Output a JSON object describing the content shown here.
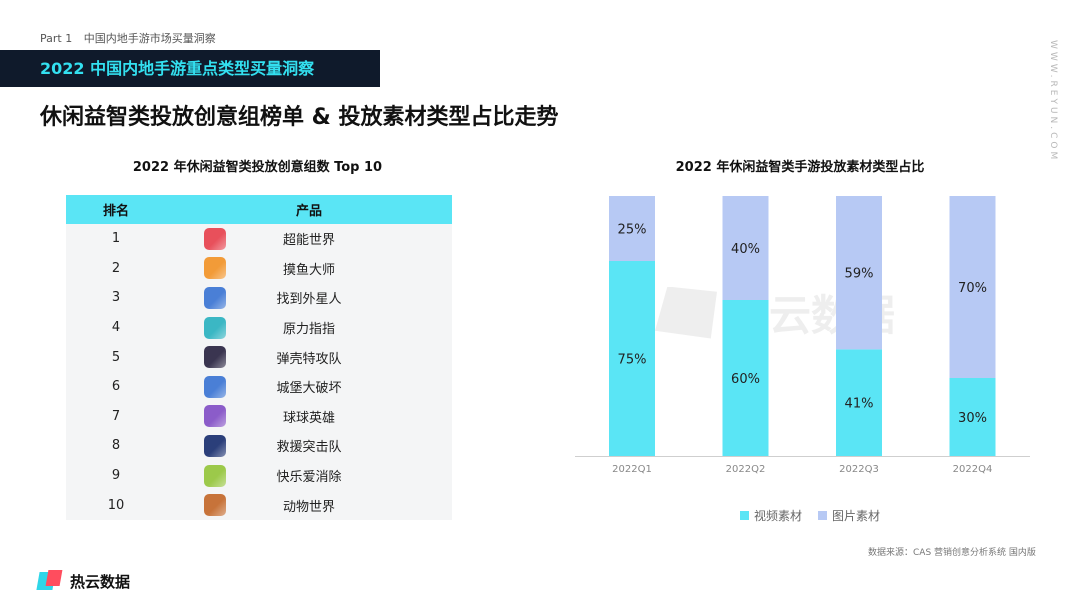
{
  "header": {
    "part_num": "Part 1",
    "part_text": "中国内地手游市场买量洞察",
    "banner": "2022 中国内地手游重点类型买量洞察",
    "vertical_text": "WWW.REYUN.COM",
    "page_title": "休闲益智类投放创意组榜单 & 投放素材类型占比走势"
  },
  "watermark": "热云数据",
  "left_panel": {
    "title": "2022 年休闲益智类投放创意组数 Top 10",
    "columns": [
      "排名",
      "产品"
    ],
    "rows": [
      {
        "rank": "1",
        "name": "超能世界",
        "icon": "game-icon-red"
      },
      {
        "rank": "2",
        "name": "摸鱼大师",
        "icon": "game-icon-orange"
      },
      {
        "rank": "3",
        "name": "找到外星人",
        "icon": "game-icon-blue"
      },
      {
        "rank": "4",
        "name": "原力指指",
        "icon": "game-icon-teal"
      },
      {
        "rank": "5",
        "name": "弹壳特攻队",
        "icon": "game-icon-dark"
      },
      {
        "rank": "6",
        "name": "城堡大破坏",
        "icon": "game-icon-blue"
      },
      {
        "rank": "7",
        "name": "球球英雄",
        "icon": "game-icon-purple"
      },
      {
        "rank": "8",
        "name": "救援突击队",
        "icon": "game-icon-navy"
      },
      {
        "rank": "9",
        "name": "快乐爱消除",
        "icon": "game-icon-green"
      },
      {
        "rank": "10",
        "name": "动物世界",
        "icon": "game-icon-brown"
      }
    ],
    "icon_colors": {
      "game-icon-red": "#e8505b",
      "game-icon-orange": "#f29b38",
      "game-icon-blue": "#4a7fd6",
      "game-icon-teal": "#3bb7c4",
      "game-icon-dark": "#3a3550",
      "game-icon-purple": "#8b5cc9",
      "game-icon-navy": "#2b3f7a",
      "game-icon-green": "#9cc94a",
      "game-icon-brown": "#c7733a"
    }
  },
  "right_panel": {
    "title": "2022 年休闲益智类手游投放素材类型占比"
  },
  "chart_data": {
    "type": "bar",
    "stacked": true,
    "unit": "%",
    "categories": [
      "2022Q1",
      "2022Q2",
      "2022Q3",
      "2022Q4"
    ],
    "series": [
      {
        "name": "视频素材",
        "values": [
          75,
          60,
          41,
          30
        ],
        "color": "#5ae5f5"
      },
      {
        "name": "图片素材",
        "values": [
          25,
          40,
          59,
          70
        ],
        "color": "#b7c9f4"
      }
    ],
    "ylim": [
      0,
      100
    ],
    "grid": false,
    "legend": "bottom"
  },
  "footer": {
    "source": "数据来源：CAS 营销创意分析系统 国内版",
    "logo_text": "热云数据"
  }
}
